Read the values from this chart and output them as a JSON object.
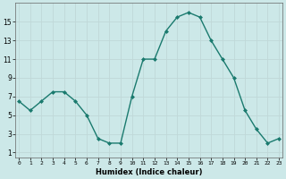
{
  "x": [
    0,
    1,
    2,
    3,
    4,
    5,
    6,
    7,
    8,
    9,
    10,
    11,
    12,
    13,
    14,
    15,
    16,
    17,
    18,
    19,
    20,
    21,
    22,
    23
  ],
  "y": [
    6.5,
    5.5,
    6.5,
    7.5,
    7.5,
    6.5,
    5.0,
    2.5,
    2.0,
    2.0,
    7.0,
    11.0,
    11.0,
    14.0,
    15.5,
    16.0,
    15.5,
    13.0,
    11.0,
    9.0,
    5.5,
    3.5,
    2.0,
    2.5
  ],
  "xlabel": "Humidex (Indice chaleur)",
  "yticks": [
    1,
    3,
    5,
    7,
    9,
    11,
    13,
    15
  ],
  "xticks": [
    0,
    1,
    2,
    3,
    4,
    5,
    6,
    7,
    8,
    9,
    10,
    11,
    12,
    13,
    14,
    15,
    16,
    17,
    18,
    19,
    20,
    21,
    22,
    23
  ],
  "xlim": [
    -0.3,
    23.3
  ],
  "ylim": [
    0.5,
    17
  ],
  "line_color": "#1a7a6e",
  "marker_color": "#1a7a6e",
  "bg_color": "#cce8e8",
  "grid_color": "#c0d8d8",
  "font_color": "#000000"
}
